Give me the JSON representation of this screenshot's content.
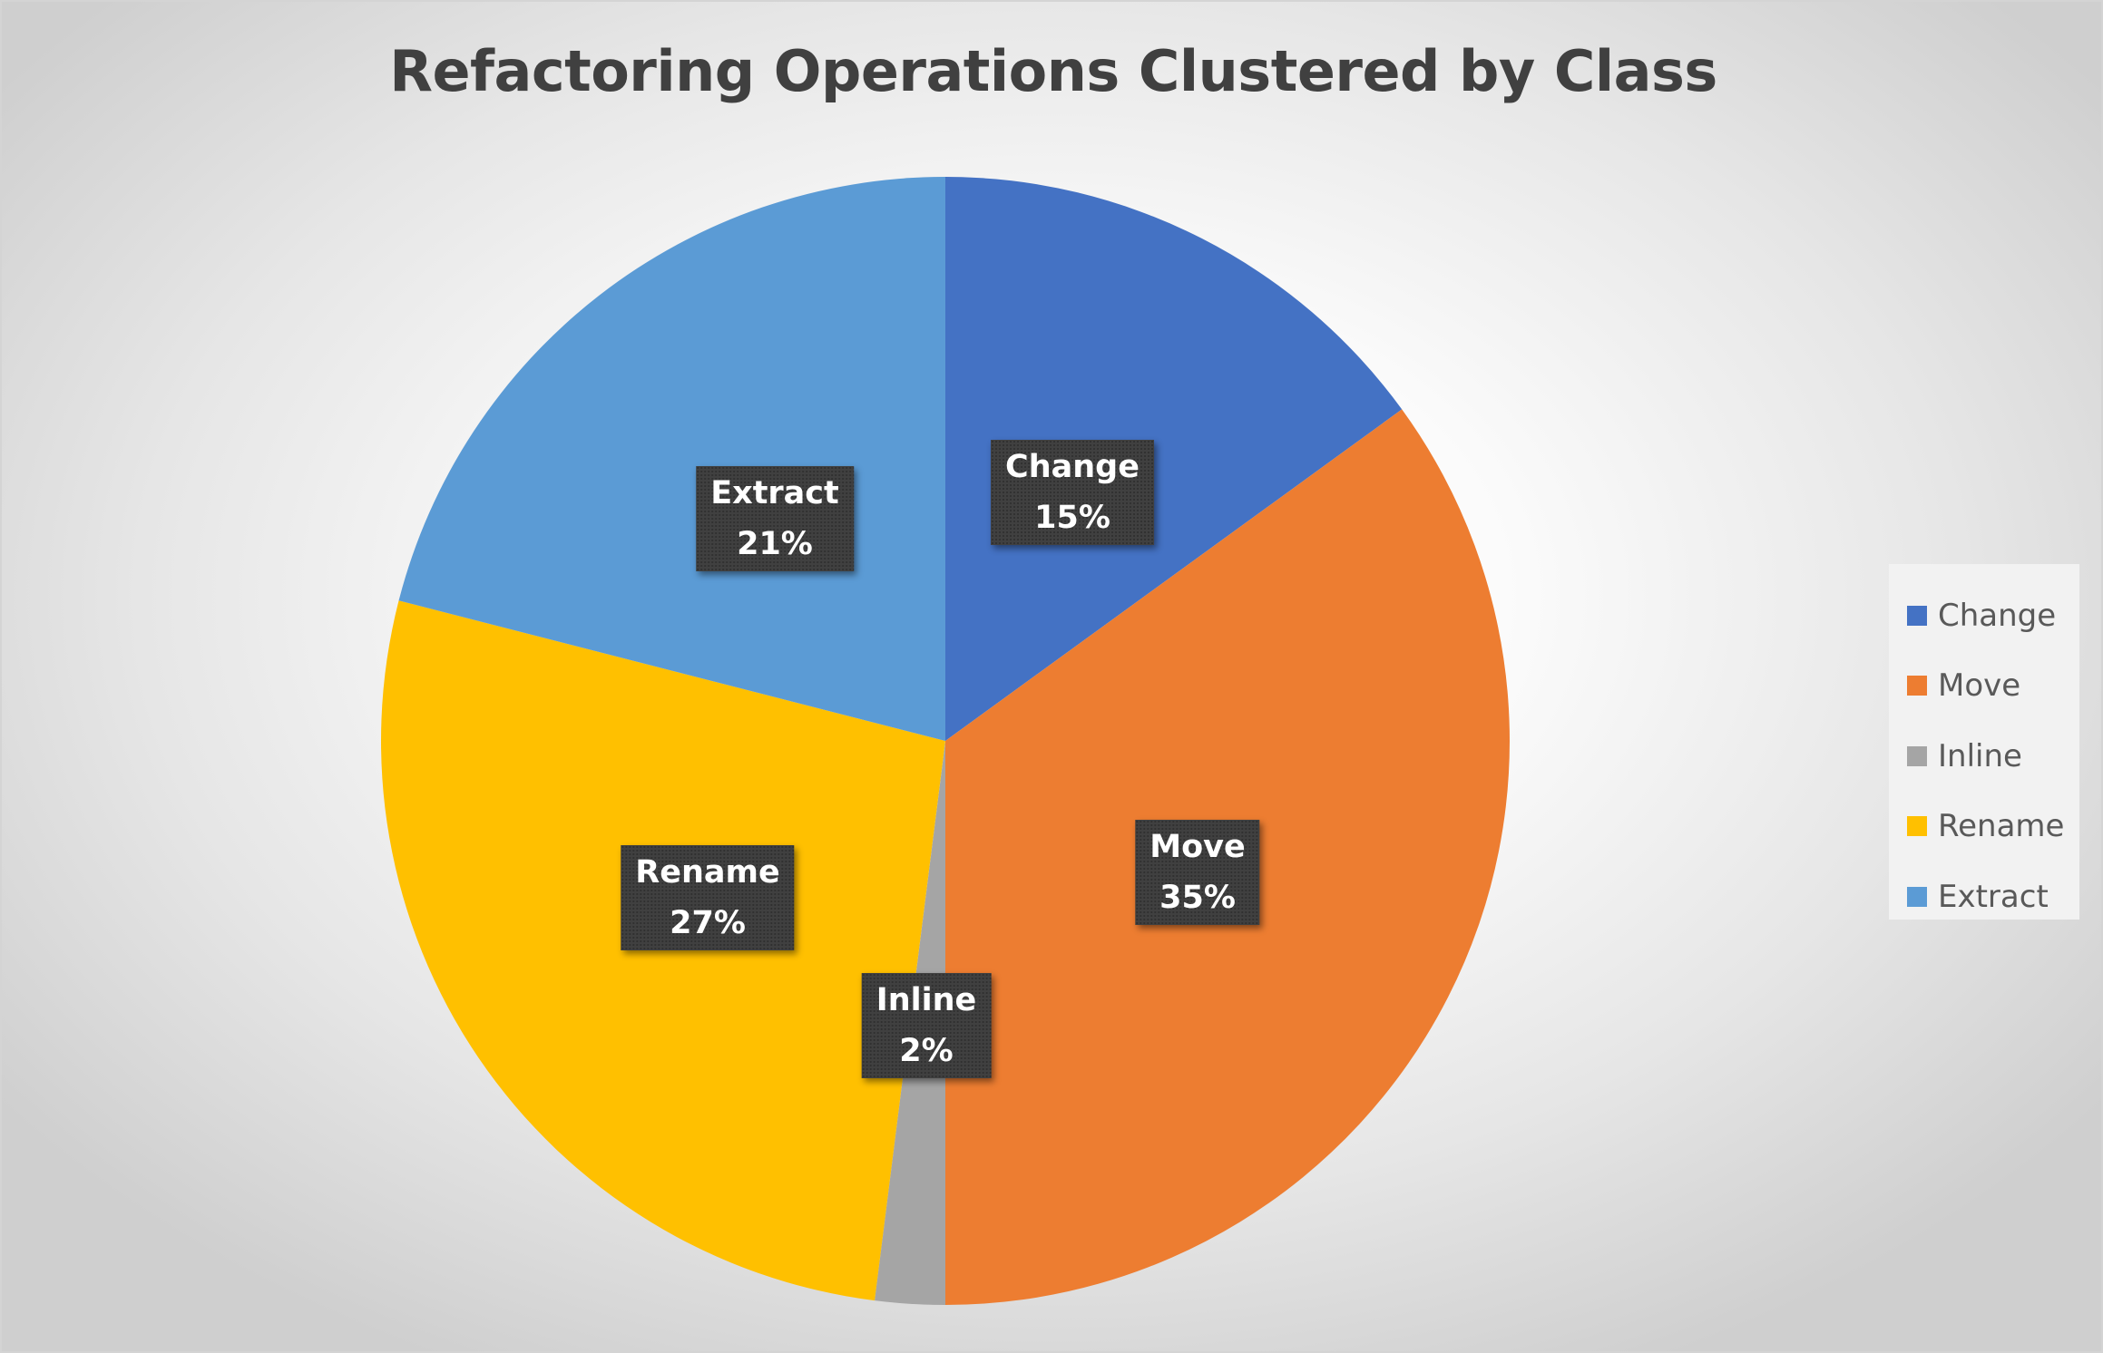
{
  "chart_data": {
    "type": "pie",
    "title": "Refactoring Operations Clustered by Class",
    "categories": [
      "Change",
      "Move",
      "Inline",
      "Rename",
      "Extract"
    ],
    "values": [
      15,
      35,
      2,
      27,
      21
    ],
    "value_labels": [
      "15%",
      "35%",
      "2%",
      "27%",
      "21%"
    ],
    "colors": [
      "#4472C4",
      "#ED7D31",
      "#A5A5A5",
      "#FFC000",
      "#5B9BD5"
    ],
    "start_angle_deg": 0,
    "direction": "clockwise",
    "legend_position": "right",
    "legend_labels": [
      "Change",
      "Move",
      "Inline",
      "Rename",
      "Extract"
    ]
  }
}
